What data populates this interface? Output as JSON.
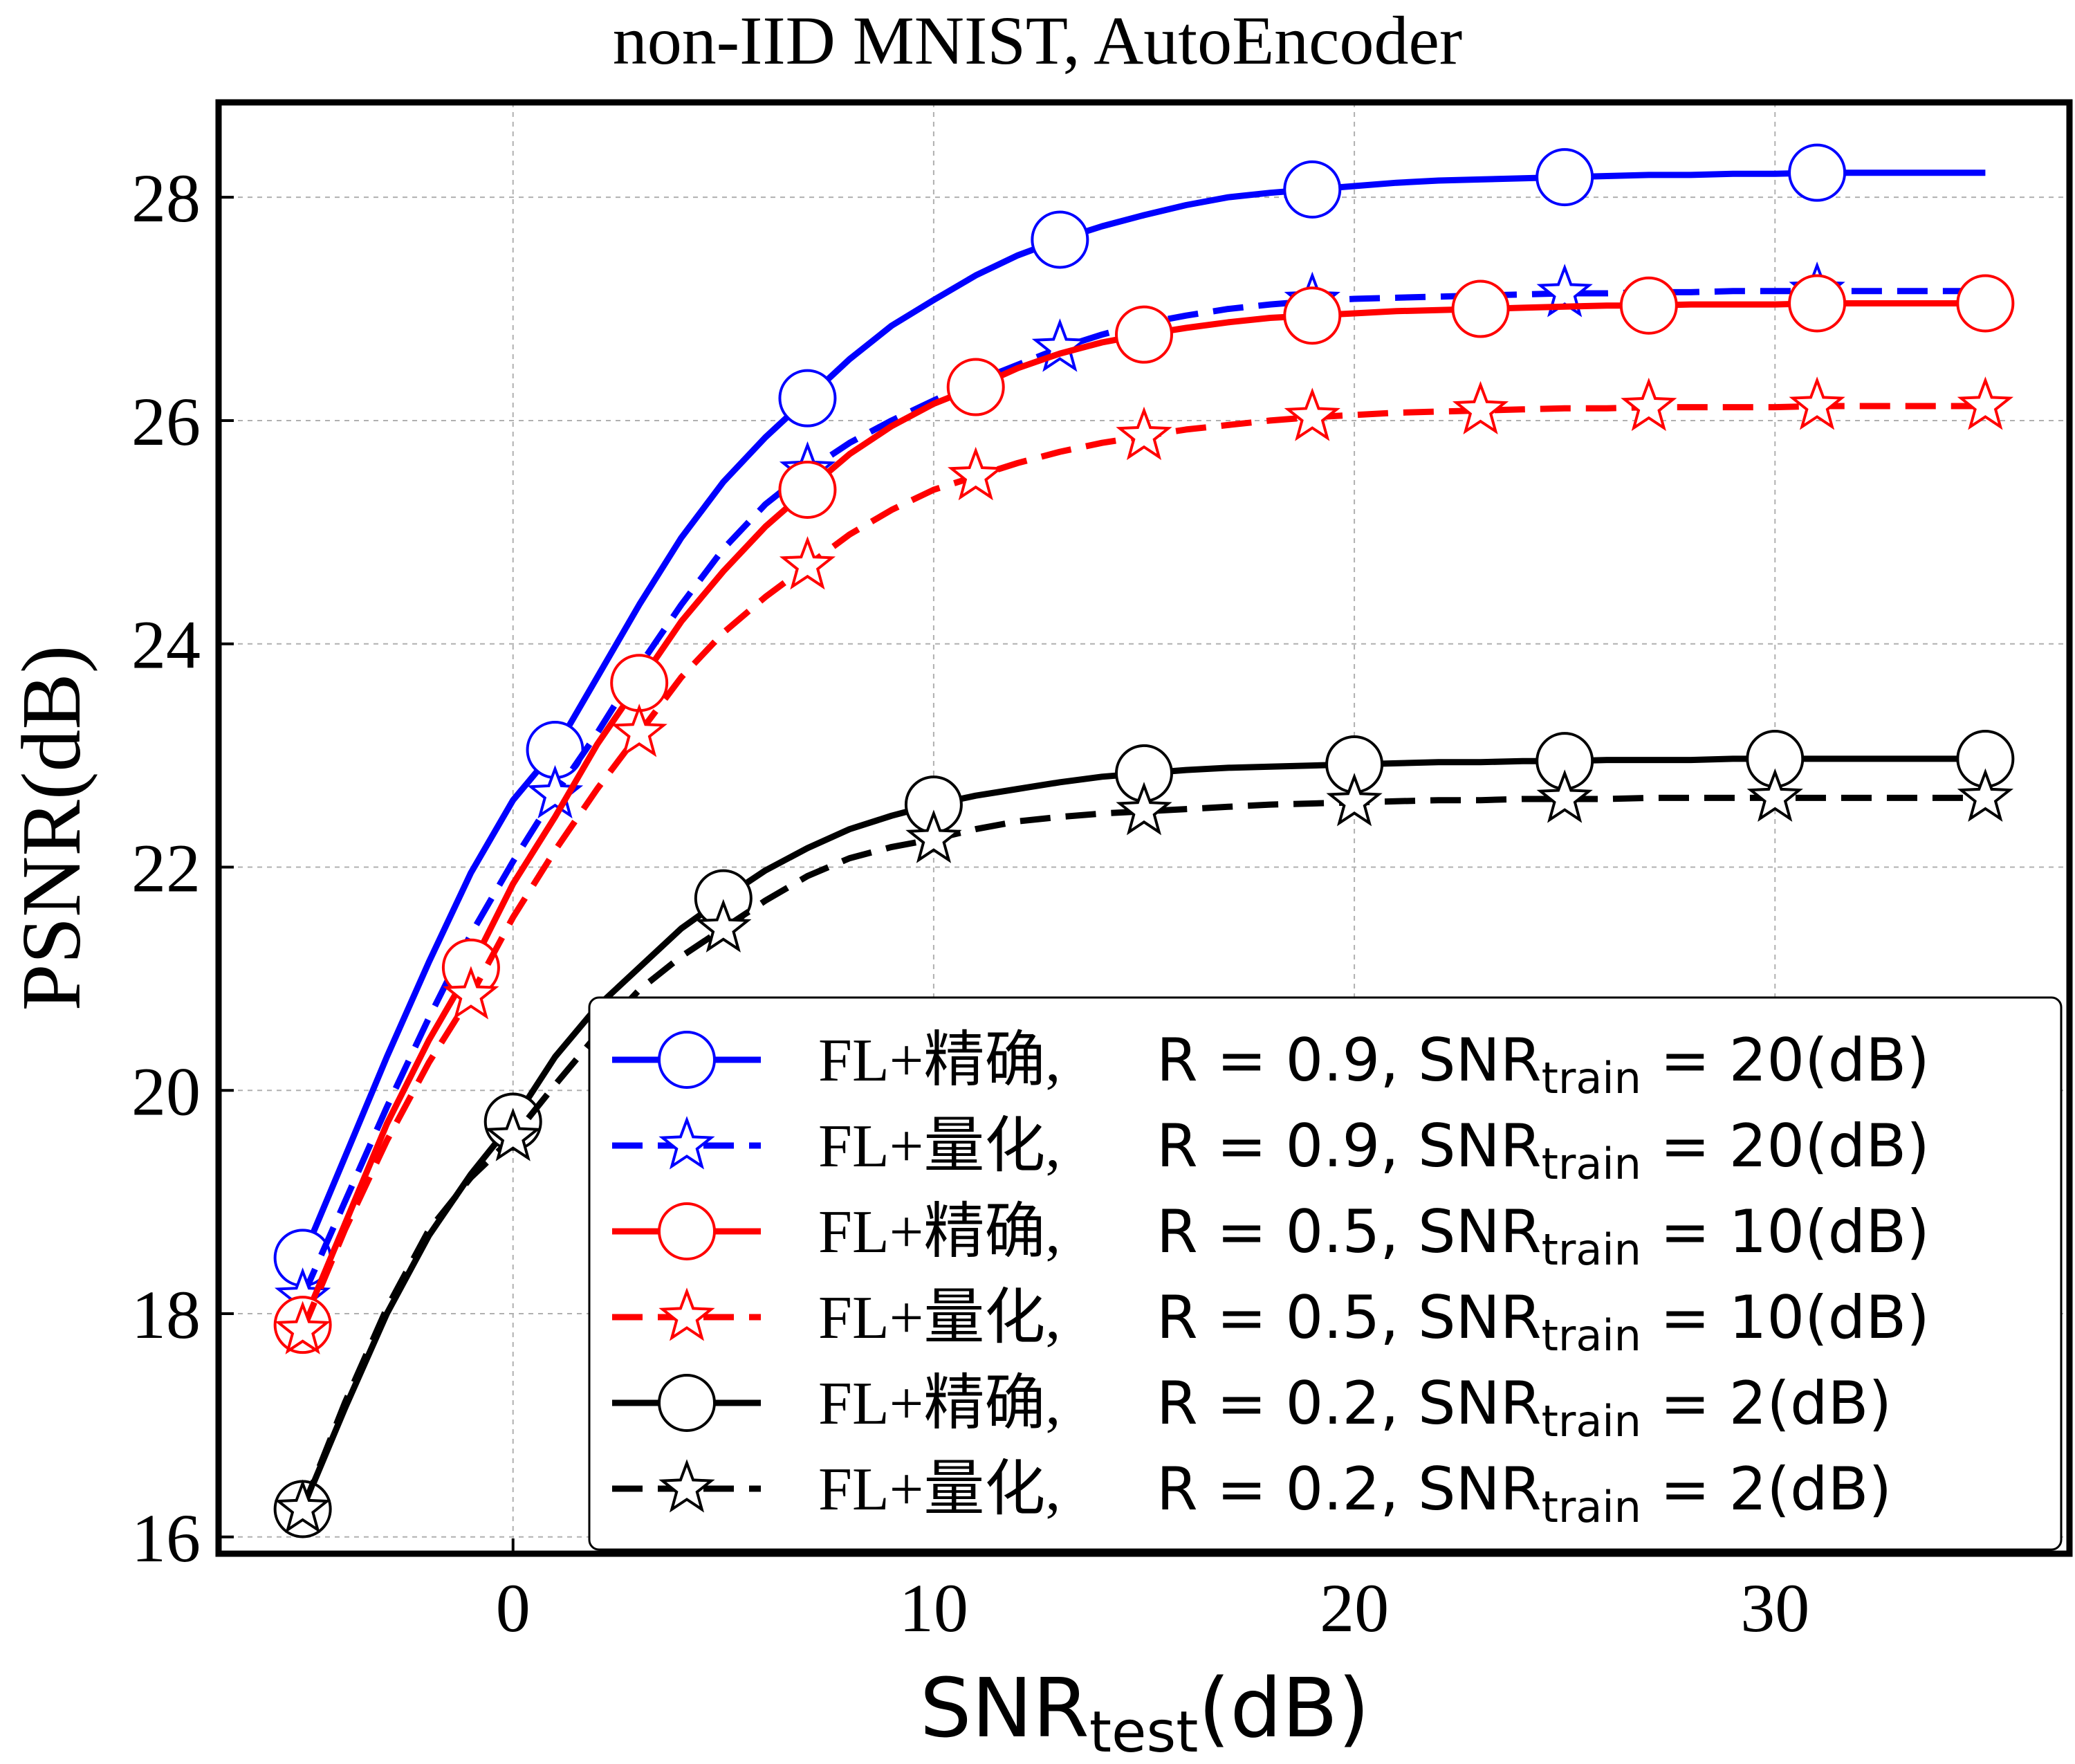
{
  "chart_data": {
    "type": "line",
    "title": "non-IID MNIST,  AutoEncoder",
    "xlabel_main": "SNR",
    "xlabel_sub": "test",
    "xlabel_unit": "(dB)",
    "ylabel": "PSNR(dB)",
    "xlim": [
      -7,
      37
    ],
    "ylim": [
      15.85,
      28.85
    ],
    "xticks": [
      0,
      10,
      20,
      30
    ],
    "yticks": [
      16,
      18,
      20,
      22,
      24,
      26,
      28
    ],
    "grid": true,
    "legend_position": "lower-right",
    "series": [
      {
        "name": "FL+精确",
        "legend_r": "R = 0.9,",
        "legend_snr": "SNR",
        "legend_sub": "train",
        "legend_tail": "= 20(dB)",
        "color": "#0000ff",
        "linestyle": "solid",
        "marker": "circle",
        "x": [
          -5,
          -4,
          -3,
          -2,
          -1,
          0,
          1,
          2,
          3,
          4,
          5,
          6,
          7,
          8,
          9,
          10,
          11,
          12,
          13,
          14,
          15,
          16,
          17,
          18,
          19,
          20,
          21,
          22,
          23,
          24,
          25,
          26,
          27,
          28,
          29,
          30,
          31,
          32,
          33,
          34,
          35
        ],
        "y": [
          18.5,
          19.4,
          20.3,
          21.15,
          21.95,
          22.6,
          23.05,
          23.7,
          24.35,
          24.95,
          25.45,
          25.85,
          26.2,
          26.55,
          26.85,
          27.08,
          27.3,
          27.48,
          27.62,
          27.74,
          27.84,
          27.93,
          28.0,
          28.04,
          28.07,
          28.1,
          28.13,
          28.15,
          28.16,
          28.17,
          28.18,
          28.19,
          28.2,
          28.2,
          28.21,
          28.21,
          28.22,
          28.22,
          28.22,
          28.22,
          28.22
        ],
        "marker_x": [
          -5,
          1,
          7,
          13,
          19,
          25,
          31
        ]
      },
      {
        "name": "FL+量化",
        "legend_r": "R = 0.9,",
        "legend_snr": "SNR",
        "legend_sub": "train",
        "legend_tail": "= 20(dB)",
        "color": "#0000ff",
        "linestyle": "dashed",
        "marker": "star",
        "x": [
          -5,
          -4,
          -3,
          -2,
          -1,
          0,
          1,
          2,
          3,
          4,
          5,
          6,
          7,
          8,
          9,
          10,
          11,
          12,
          13,
          14,
          15,
          16,
          17,
          18,
          19,
          20,
          21,
          22,
          23,
          24,
          25,
          26,
          27,
          28,
          29,
          30,
          31,
          32,
          33,
          34,
          35
        ],
        "y": [
          18.15,
          19.0,
          19.85,
          20.65,
          21.4,
          22.05,
          22.65,
          23.2,
          23.8,
          24.35,
          24.85,
          25.25,
          25.55,
          25.8,
          26.0,
          26.18,
          26.35,
          26.5,
          26.65,
          26.77,
          26.87,
          26.94,
          27.0,
          27.04,
          27.07,
          27.09,
          27.1,
          27.11,
          27.12,
          27.13,
          27.14,
          27.14,
          27.15,
          27.15,
          27.16,
          27.16,
          27.16,
          27.16,
          27.16,
          27.16,
          27.16
        ],
        "marker_x": [
          -5,
          1,
          7,
          13,
          19,
          25,
          31
        ]
      },
      {
        "name": "FL+精确",
        "legend_r": "R = 0.5,",
        "legend_snr": "SNR",
        "legend_sub": "train",
        "legend_tail": "= 10(dB)",
        "color": "#ff0000",
        "linestyle": "solid",
        "marker": "circle",
        "x": [
          -5,
          -4,
          -3,
          -2,
          -1,
          0,
          1,
          2,
          3,
          4,
          5,
          6,
          7,
          8,
          9,
          10,
          11,
          12,
          13,
          14,
          15,
          16,
          17,
          18,
          19,
          20,
          21,
          22,
          23,
          24,
          25,
          26,
          27,
          28,
          29,
          30,
          31,
          32,
          33,
          34,
          35
        ],
        "y": [
          17.9,
          18.8,
          19.7,
          20.45,
          21.1,
          21.85,
          22.45,
          23.1,
          23.65,
          24.2,
          24.65,
          25.05,
          25.38,
          25.7,
          25.95,
          26.15,
          26.3,
          26.47,
          26.6,
          26.7,
          26.77,
          26.83,
          26.88,
          26.92,
          26.94,
          26.96,
          26.98,
          26.99,
          27.0,
          27.01,
          27.02,
          27.03,
          27.03,
          27.04,
          27.04,
          27.04,
          27.05,
          27.05,
          27.05,
          27.05,
          27.05
        ],
        "marker_x": [
          -5,
          -1,
          3,
          7,
          11,
          15,
          19,
          23,
          27,
          31,
          35
        ]
      },
      {
        "name": "FL+量化",
        "legend_r": "R = 0.5,",
        "legend_snr": "SNR",
        "legend_sub": "train",
        "legend_tail": "= 10(dB)",
        "color": "#ff0000",
        "linestyle": "dashed",
        "marker": "star",
        "x": [
          -5,
          -4,
          -3,
          -2,
          -1,
          0,
          1,
          2,
          3,
          4,
          5,
          6,
          7,
          8,
          9,
          10,
          11,
          12,
          13,
          14,
          15,
          16,
          17,
          18,
          19,
          20,
          21,
          22,
          23,
          24,
          25,
          26,
          27,
          28,
          29,
          30,
          31,
          32,
          33,
          34,
          35
        ],
        "y": [
          17.85,
          18.75,
          19.55,
          20.25,
          20.85,
          21.55,
          22.15,
          22.7,
          23.2,
          23.7,
          24.1,
          24.42,
          24.7,
          24.98,
          25.2,
          25.38,
          25.5,
          25.62,
          25.72,
          25.8,
          25.86,
          25.92,
          25.96,
          26.0,
          26.03,
          26.05,
          26.07,
          26.08,
          26.09,
          26.1,
          26.11,
          26.11,
          26.12,
          26.12,
          26.12,
          26.12,
          26.13,
          26.13,
          26.13,
          26.13,
          26.13
        ],
        "marker_x": [
          -5,
          -1,
          3,
          7,
          11,
          15,
          19,
          23,
          27,
          31,
          35
        ]
      },
      {
        "name": "FL+精确",
        "legend_r": "R = 0.2,",
        "legend_snr": "SNR",
        "legend_sub": "train",
        "legend_tail": "= 2(dB)",
        "color": "#000000",
        "linestyle": "solid",
        "marker": "circle",
        "x": [
          -5,
          -4,
          -3,
          -2,
          -1,
          0,
          1,
          2,
          3,
          4,
          5,
          6,
          7,
          8,
          9,
          10,
          11,
          12,
          13,
          14,
          15,
          16,
          17,
          18,
          19,
          20,
          21,
          22,
          23,
          24,
          25,
          26,
          27,
          28,
          29,
          30,
          31,
          32,
          33,
          34,
          35
        ],
        "y": [
          16.25,
          17.15,
          18.0,
          18.7,
          19.25,
          19.72,
          20.3,
          20.75,
          21.1,
          21.45,
          21.72,
          21.97,
          22.17,
          22.34,
          22.46,
          22.56,
          22.64,
          22.7,
          22.76,
          22.81,
          22.84,
          22.87,
          22.89,
          22.9,
          22.91,
          22.92,
          22.93,
          22.94,
          22.94,
          22.95,
          22.95,
          22.96,
          22.96,
          22.96,
          22.97,
          22.97,
          22.97,
          22.97,
          22.97,
          22.97,
          22.97
        ],
        "marker_x": [
          -5,
          0,
          5,
          10,
          15,
          20,
          25,
          30,
          35
        ]
      },
      {
        "name": "FL+量化",
        "legend_r": "R = 0.2,",
        "legend_snr": "SNR",
        "legend_sub": "train",
        "legend_tail": "= 2(dB)",
        "color": "#000000",
        "linestyle": "dashed",
        "marker": "star",
        "x": [
          -5,
          -4,
          -3,
          -2,
          -1,
          0,
          1,
          2,
          3,
          4,
          5,
          6,
          7,
          8,
          9,
          10,
          11,
          12,
          13,
          14,
          15,
          16,
          17,
          18,
          19,
          20,
          21,
          22,
          23,
          24,
          25,
          26,
          27,
          28,
          29,
          30,
          31,
          32,
          33,
          34,
          35
        ],
        "y": [
          16.25,
          17.2,
          18.05,
          18.75,
          19.22,
          19.58,
          20.05,
          20.5,
          20.9,
          21.2,
          21.45,
          21.7,
          21.92,
          22.08,
          22.18,
          22.25,
          22.34,
          22.41,
          22.45,
          22.48,
          22.5,
          22.52,
          22.54,
          22.56,
          22.57,
          22.58,
          22.59,
          22.6,
          22.6,
          22.61,
          22.61,
          22.61,
          22.62,
          22.62,
          22.62,
          22.62,
          22.62,
          22.62,
          22.62,
          22.62,
          22.62
        ],
        "marker_x": [
          -5,
          0,
          5,
          10,
          15,
          20,
          25,
          30,
          35
        ]
      }
    ]
  }
}
